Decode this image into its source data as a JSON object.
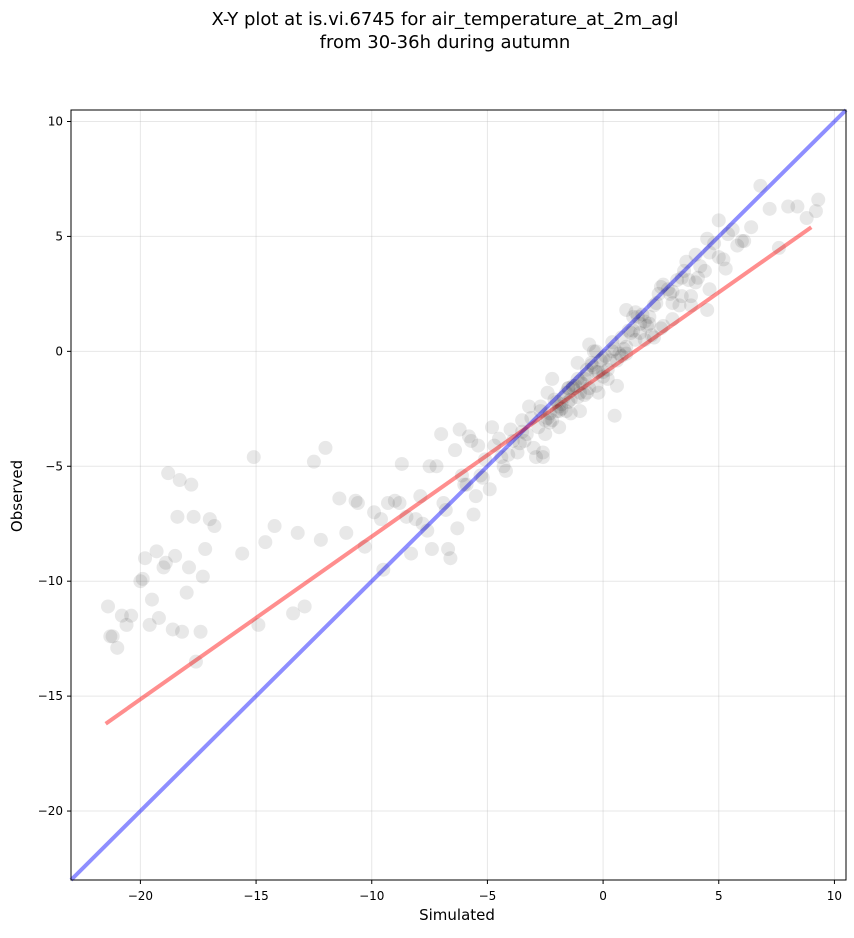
{
  "chart_data": {
    "type": "scatter",
    "title": "X-Y plot at is.vi.6745 for air_temperature_at_2m_agl",
    "subtitle": "from 30-36h during autumn",
    "xlabel": "Simulated",
    "ylabel": "Observed",
    "xlim": [
      -23,
      10.5
    ],
    "ylim": [
      -23,
      10.5
    ],
    "x_ticks": [
      -20,
      -15,
      -10,
      -5,
      0,
      5,
      10
    ],
    "y_ticks": [
      -20,
      -15,
      -10,
      -5,
      0,
      5,
      10
    ],
    "tick_labels": {
      "x": [
        "−20",
        "−15",
        "−10",
        "−5",
        "0",
        "5",
        "10"
      ],
      "y": [
        "−20",
        "−15",
        "−10",
        "−5",
        "0",
        "5",
        "10"
      ]
    },
    "grid": true,
    "legend": "none",
    "point_color": "#000000",
    "point_opacity": 0.09,
    "lines": [
      {
        "kind": "identity",
        "color": "#0000ff",
        "opacity": 0.33,
        "x": [
          -23,
          10.5
        ],
        "y": [
          -23,
          10.5
        ]
      },
      {
        "kind": "regression",
        "color": "#ff0000",
        "opacity": 0.33,
        "x": [
          -21.5,
          9.0
        ],
        "y": [
          -16.2,
          5.4
        ]
      }
    ],
    "series": [
      {
        "x": [
          -21.4,
          -21.2,
          -21.0,
          -20.6,
          -20.4,
          -20.0,
          -19.8,
          -19.6,
          -19.3,
          -19.2,
          -19.0,
          -18.8,
          -18.6,
          -18.4,
          -18.2,
          -18.0,
          -17.8,
          -17.6,
          -17.4,
          -17.2,
          -17.0,
          -16.8,
          -18.5,
          -19.5,
          -18.9,
          -17.9,
          -17.3,
          -20.8,
          -21.3,
          -19.9,
          -18.3,
          -17.7,
          -15.6,
          -15.1,
          -14.6,
          -14.2,
          -13.2,
          -12.9,
          -12.5,
          -12.2,
          -11.4,
          -10.7,
          -10.6,
          -9.9,
          -9.6,
          -9.3,
          -9.0,
          -8.7,
          -8.3,
          -8.1,
          -7.9,
          -7.6,
          -7.4,
          -7.2,
          -7.0,
          -6.8,
          -6.6,
          -6.4,
          -6.2,
          -6.0,
          -5.8,
          -5.6,
          -5.4,
          -5.2,
          -13.4,
          -12.0,
          -11.1,
          -10.3,
          -14.9,
          -9.5,
          -8.8,
          -8.5,
          -7.8,
          -7.5,
          -6.9,
          -6.7,
          -6.3,
          -6.1,
          -5.9,
          -5.7,
          -5.5,
          -5.3,
          -5.1,
          -4.9,
          -4.7,
          -4.5,
          -4.3,
          -4.1,
          -3.9,
          -3.7,
          -3.5,
          -3.3,
          -3.1,
          -2.9,
          -2.7,
          -2.5,
          -2.3,
          -2.1,
          -1.9,
          -1.7,
          -1.5,
          -1.3,
          -1.1,
          -0.9,
          -0.7,
          -0.5,
          -0.3,
          -0.1,
          -4.8,
          -4.4,
          -4.0,
          -3.6,
          -3.2,
          -2.8,
          -2.4,
          -2.0,
          -1.6,
          -1.2,
          -0.8,
          -0.4,
          0.0,
          0.4,
          0.8,
          1.2,
          1.6,
          2.0,
          2.4,
          2.8,
          3.2,
          3.6,
          4.0,
          4.4,
          4.8,
          5.2,
          5.6,
          6.0,
          6.4,
          6.8,
          7.2,
          7.6,
          8.0,
          8.4,
          8.8,
          9.2,
          9.3,
          -3.0,
          -2.6,
          -2.2,
          -1.8,
          -1.4,
          -1.0,
          -0.6,
          -0.2,
          0.2,
          0.6,
          1.0,
          1.4,
          1.8,
          2.2,
          2.6,
          3.0,
          3.4,
          3.8,
          4.2,
          4.6,
          5.0,
          5.4,
          5.8,
          -2.5,
          -2.0,
          -1.5,
          -1.0,
          -0.5,
          0.0,
          0.5,
          1.0,
          1.5,
          2.0,
          2.5,
          3.0,
          3.5,
          4.0,
          4.5,
          5.0,
          -3.5,
          -2.7,
          -1.9,
          -1.1,
          -0.3,
          0.5,
          1.3,
          2.1,
          2.9,
          3.7,
          4.5,
          5.3,
          6.1,
          -4.2,
          -3.4,
          -2.6,
          -1.8,
          -1.0,
          -0.2,
          0.6,
          1.4,
          2.2,
          3.0,
          3.8,
          4.6,
          -1.5,
          -0.7,
          0.1,
          0.9,
          1.7,
          2.5,
          3.3,
          4.1,
          -2.2,
          -1.4,
          -0.6,
          0.2,
          1.0,
          1.8,
          2.6,
          3.4,
          0.0,
          0.8,
          1.6,
          -0.8,
          -1.6,
          -2.4,
          0.3,
          -0.3,
          1.1,
          -1.1,
          0.7,
          -0.7,
          1.9,
          -1.9,
          2.3,
          -2.3,
          0.4,
          -0.4,
          1.3,
          -1.3
        ],
        "y": [
          -11.1,
          -12.4,
          -12.9,
          -11.9,
          -11.5,
          -10.0,
          -9.0,
          -11.9,
          -8.7,
          -11.6,
          -9.4,
          -5.3,
          -12.1,
          -7.2,
          -12.2,
          -10.5,
          -5.8,
          -13.5,
          -12.2,
          -8.6,
          -7.3,
          -7.6,
          -8.9,
          -10.8,
          -9.2,
          -9.4,
          -9.8,
          -11.5,
          -12.4,
          -9.9,
          -5.6,
          -7.2,
          -8.8,
          -4.6,
          -8.3,
          -7.6,
          -7.9,
          -11.1,
          -4.8,
          -8.2,
          -6.4,
          -6.5,
          -6.6,
          -7.0,
          -7.3,
          -6.6,
          -6.5,
          -4.9,
          -8.8,
          -7.3,
          -6.3,
          -7.8,
          -8.6,
          -5.0,
          -3.6,
          -6.9,
          -9.0,
          -4.3,
          -3.4,
          -5.8,
          -3.7,
          -7.1,
          -4.1,
          -5.5,
          -11.4,
          -4.2,
          -7.9,
          -8.5,
          -11.9,
          -9.5,
          -6.6,
          -7.2,
          -7.5,
          -5.0,
          -6.6,
          -8.6,
          -7.7,
          -5.4,
          -5.8,
          -3.9,
          -6.3,
          -5.4,
          -4.7,
          -6.0,
          -4.1,
          -3.8,
          -5.0,
          -4.5,
          -3.9,
          -4.4,
          -3.5,
          -3.6,
          -2.9,
          -4.6,
          -2.6,
          -3.0,
          -2.7,
          -2.1,
          -2.4,
          -2.0,
          -1.6,
          -1.5,
          -1.2,
          -1.4,
          -0.8,
          -0.6,
          -0.9,
          -0.4,
          -3.3,
          -4.6,
          -3.4,
          -4.0,
          -2.4,
          -3.3,
          -1.8,
          -2.6,
          -1.8,
          -1.5,
          -1.2,
          0.0,
          -0.3,
          0.4,
          0.6,
          0.8,
          1.2,
          1.5,
          2.5,
          2.7,
          3.1,
          3.9,
          4.2,
          3.5,
          4.7,
          4.0,
          5.3,
          4.8,
          5.4,
          7.2,
          6.2,
          4.5,
          6.3,
          6.3,
          5.8,
          6.1,
          6.6,
          -4.2,
          -4.4,
          -3.0,
          -2.5,
          -2.1,
          -2.6,
          -1.6,
          -0.9,
          -0.8,
          -1.5,
          0.2,
          0.5,
          1.3,
          2.0,
          1.1,
          2.6,
          3.2,
          2.4,
          3.7,
          4.3,
          4.1,
          5.1,
          4.6,
          -3.6,
          -2.2,
          -1.6,
          -1.8,
          -0.5,
          -1.1,
          0.1,
          -0.1,
          1.5,
          1.2,
          2.8,
          2.1,
          3.5,
          3.0,
          4.9,
          5.7,
          -3.0,
          -2.4,
          -3.3,
          -0.5,
          0.0,
          -2.8,
          0.9,
          0.7,
          2.5,
          3.1,
          1.8,
          3.6,
          4.8,
          -5.2,
          -3.9,
          -4.6,
          -2.3,
          -1.3,
          -1.8,
          -0.4,
          1.7,
          0.6,
          1.4,
          2.0,
          2.7,
          -2.2,
          -1.8,
          -0.2,
          0.1,
          1.6,
          1.0,
          2.0,
          3.2,
          -1.2,
          -2.7,
          0.3,
          -1.2,
          1.8,
          0.5,
          2.9,
          2.4,
          -0.9,
          -0.2,
          0.8,
          -1.9,
          -2.6,
          -2.9,
          -0.4,
          -1.5,
          0.9,
          -2.0,
          -0.1,
          -1.0,
          1.1,
          -2.6,
          2.1,
          -3.1,
          0.0,
          -0.7,
          1.5,
          -1.6
        ]
      }
    ]
  }
}
